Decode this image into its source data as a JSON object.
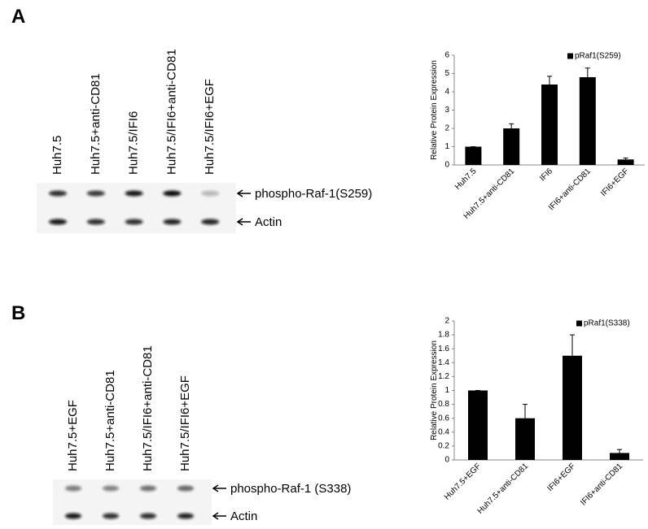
{
  "panels": [
    {
      "label": "A",
      "lanes": [
        "Huh7.5",
        "Huh7.5+anti-CD81",
        "Huh7.5/IFI6",
        "Huh7.5/IFI6+anti-CD81",
        "Huh7.5/IFI6+EGF"
      ],
      "blots": [
        "phospho-Raf-1(S259)",
        "Actin"
      ]
    },
    {
      "label": "B",
      "lanes": [
        "Huh7.5+EGF",
        "Huh7.5+anti-CD81",
        "Huh7.5/IFI6+anti-CD81",
        "Huh7.5/IFI6+EGF"
      ],
      "blots": [
        "phospho-Raf-1 (S338)",
        "Actin"
      ]
    }
  ],
  "chart_data": [
    {
      "type": "bar",
      "y_label": "Relative Protein Expression",
      "categories": [
        "Huh7.5",
        "Huh7.5+anti-CD81",
        "IFI6",
        "IFI6+anti-CD81",
        "IFI6+EGF"
      ],
      "series": [
        {
          "name": "pRaf1(S259)",
          "color": "#000000",
          "values": [
            1,
            2,
            4.4,
            4.8,
            0.3
          ],
          "errors": [
            0,
            0.25,
            0.45,
            0.5,
            0.08
          ]
        }
      ],
      "ylim": [
        0,
        6
      ],
      "yticks": [
        0,
        1,
        2,
        3,
        4,
        5,
        6
      ],
      "grid": false
    },
    {
      "type": "bar",
      "y_label": "Relative Protein Expression",
      "categories": [
        "Huh7.5+EGF",
        "Huh7.5+anti-CD81",
        "IFI6+EGF",
        "IFI6+anti-CD81"
      ],
      "series": [
        {
          "name": "pRaf1(S338)",
          "color": "#000000",
          "values": [
            1,
            0.6,
            1.5,
            0.1
          ],
          "errors": [
            0,
            0.2,
            0.3,
            0.05
          ]
        }
      ],
      "ylim": [
        0,
        2
      ],
      "yticks": [
        0,
        0.2,
        0.4,
        0.6,
        0.8,
        1,
        1.2,
        1.4,
        1.6,
        1.8,
        2
      ],
      "grid": false
    }
  ]
}
